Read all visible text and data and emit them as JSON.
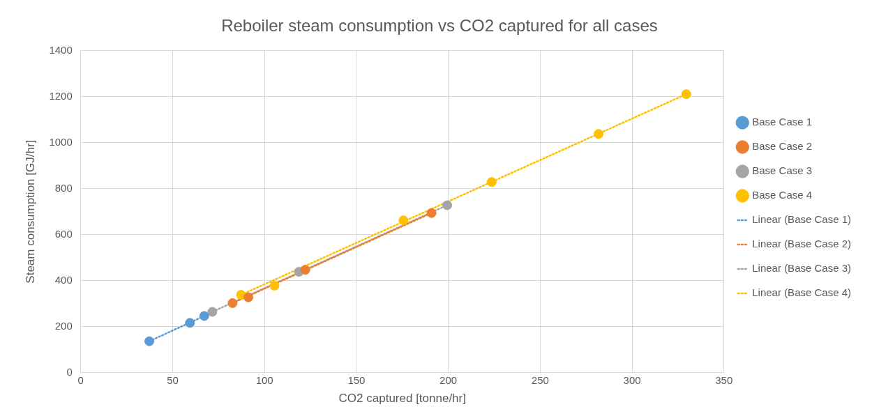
{
  "chart_data": {
    "type": "scatter",
    "title": "Reboiler steam consumption vs CO2 captured for all cases",
    "xlabel": "CO2 captured [tonne/hr]",
    "ylabel": "Steam consumption [GJ/hr]",
    "xlim": [
      0,
      350
    ],
    "xticks": [
      0,
      50,
      100,
      150,
      200,
      250,
      300,
      350
    ],
    "ylim": [
      0,
      1400
    ],
    "yticks": [
      0,
      200,
      400,
      600,
      800,
      1000,
      1200,
      1400
    ],
    "grid": true,
    "legend": "right",
    "marker": "circle",
    "series": [
      {
        "name": "Base Case 1",
        "type": "scatter",
        "color": "#5b9bd5",
        "x": [
          37.3,
          59.4,
          67.2
        ],
        "values": [
          136,
          216,
          246
        ]
      },
      {
        "name": "Base Case 2",
        "type": "scatter",
        "color": "#ed7d31",
        "x": [
          82.6,
          91.2,
          122.2,
          190.9
        ],
        "values": [
          302,
          327,
          447,
          694
        ]
      },
      {
        "name": "Base Case 3",
        "type": "scatter",
        "color": "#a5a5a5",
        "x": [
          71.6,
          118.7,
          199.4
        ],
        "values": [
          264,
          438,
          728
        ]
      },
      {
        "name": "Base Case 4",
        "type": "scatter",
        "color": "#ffc000",
        "x": [
          87.2,
          105.4,
          175.6,
          223.6,
          281.8,
          329.5
        ],
        "values": [
          338,
          378,
          662,
          829,
          1038,
          1211
        ]
      },
      {
        "name": "Linear (Base Case 1)",
        "type": "line",
        "line_style": "dotted",
        "marker": "none",
        "color": "#5b9bd5",
        "x": [
          37.3,
          67.2
        ],
        "values": [
          136,
          246
        ]
      },
      {
        "name": "Linear (Base Case 2)",
        "type": "line",
        "line_style": "dotted",
        "marker": "none",
        "color": "#ed7d31",
        "x": [
          82.6,
          190.9
        ],
        "values": [
          302,
          694
        ]
      },
      {
        "name": "Linear (Base Case 3)",
        "type": "line",
        "line_style": "dotted",
        "marker": "none",
        "color": "#a5a5a5",
        "x": [
          71.6,
          199.4
        ],
        "values": [
          264,
          728
        ]
      },
      {
        "name": "Linear (Base Case 4)",
        "type": "line",
        "line_style": "dotted",
        "marker": "none",
        "color": "#ffc000",
        "x": [
          87.2,
          329.5
        ],
        "values": [
          338,
          1211
        ]
      }
    ]
  }
}
